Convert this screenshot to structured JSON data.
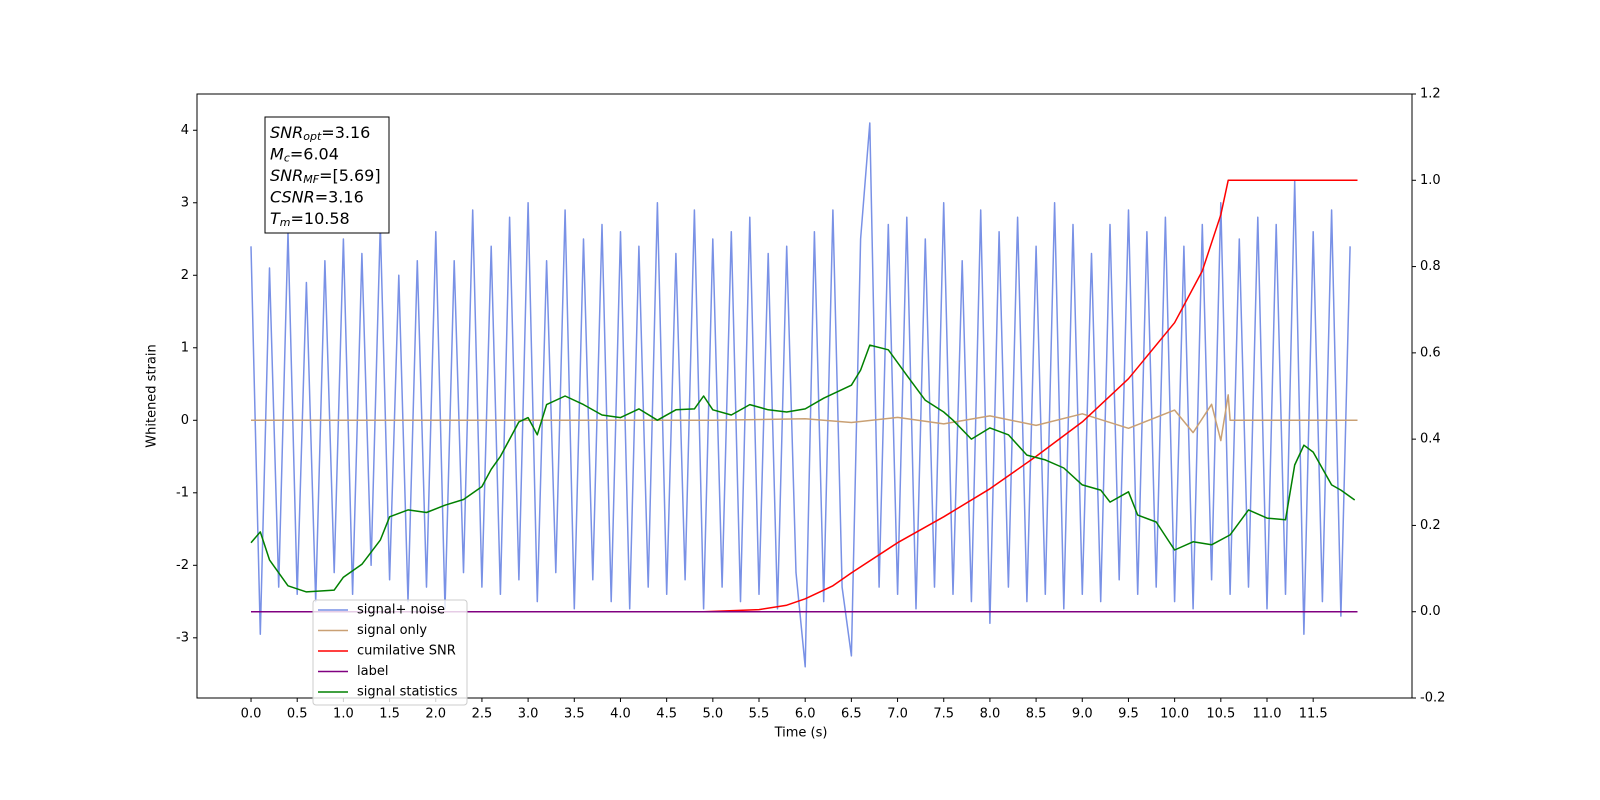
{
  "chart_data": {
    "type": "line",
    "xlabel": "Time (s)",
    "ylabel": "Whitened strain",
    "xlim": [
      -0.585,
      12.57
    ],
    "ylim": [
      -3.83,
      4.5
    ],
    "y2lim": [
      -0.2,
      1.2
    ],
    "xticks": [
      {
        "value": 0,
        "label": "0.0"
      },
      0.5,
      {
        "value": 1,
        "label": "1.0"
      },
      1.5,
      {
        "value": 2,
        "label": "2.0"
      },
      2.5,
      {
        "value": 3,
        "label": "3.0"
      },
      3.5,
      {
        "value": 4,
        "label": "4.0"
      },
      4.5,
      {
        "value": 5,
        "label": "5.0"
      },
      5.5,
      {
        "value": 6,
        "label": "6.0"
      },
      6.5,
      {
        "value": 7,
        "label": "7.0"
      },
      7.5,
      {
        "value": 8,
        "label": "8.0"
      },
      8.5,
      {
        "value": 9,
        "label": "9.0"
      },
      9.5,
      {
        "value": 10,
        "label": "10.0"
      },
      10.5,
      {
        "value": 11,
        "label": "11.0"
      },
      11.5
    ],
    "yticks": [
      -3,
      -2,
      -1,
      0,
      1,
      2,
      3,
      4
    ],
    "y2ticks": [
      -0.2,
      {
        "value": 0,
        "label": "0.0"
      },
      0.2,
      0.4,
      0.6,
      0.8,
      {
        "value": 1,
        "label": "1.0"
      },
      1.2
    ],
    "legend": "lower left",
    "annotations": [
      {
        "symbol": "SNR",
        "subscript": "opt",
        "text": "=3.16"
      },
      {
        "symbol": "M",
        "subscript": "c",
        "text": "=6.04"
      },
      {
        "symbol": "SNR",
        "subscript": "MF",
        "text": "=[5.69]"
      },
      {
        "symbol": "CSNR",
        "text": "=3.16"
      },
      {
        "symbol": "T",
        "subscript": "m",
        "text": "=10.58"
      }
    ],
    "series": [
      {
        "name": "signal+ noise",
        "color": "#7991e6",
        "x": [
          0.0,
          0.1,
          0.2,
          0.3,
          0.4,
          0.5,
          0.6,
          0.7,
          0.8,
          0.9,
          1.0,
          1.1,
          1.2,
          1.3,
          1.4,
          1.5,
          1.6,
          1.7,
          1.8,
          1.9,
          2.0,
          2.1,
          2.2,
          2.3,
          2.4,
          2.5,
          2.6,
          2.7,
          2.8,
          2.9,
          3.0,
          3.1,
          3.2,
          3.3,
          3.4,
          3.5,
          3.6,
          3.7,
          3.8,
          3.9,
          4.0,
          4.1,
          4.2,
          4.3,
          4.4,
          4.5,
          4.6,
          4.7,
          4.8,
          4.9,
          5.0,
          5.1,
          5.2,
          5.3,
          5.4,
          5.5,
          5.6,
          5.7,
          5.8,
          5.9,
          6.0,
          6.1,
          6.2,
          6.3,
          6.4,
          6.5,
          6.6,
          6.7,
          6.8,
          6.9,
          7.0,
          7.1,
          7.2,
          7.3,
          7.4,
          7.5,
          7.6,
          7.7,
          7.8,
          7.9,
          8.0,
          8.1,
          8.2,
          8.3,
          8.4,
          8.5,
          8.6,
          8.7,
          8.8,
          8.9,
          9.0,
          9.1,
          9.2,
          9.3,
          9.4,
          9.5,
          9.6,
          9.7,
          9.8,
          9.9,
          10.0,
          10.1,
          10.2,
          10.3,
          10.4,
          10.5,
          10.6,
          10.7,
          10.8,
          10.9,
          11.0,
          11.1,
          11.2,
          11.3,
          11.4,
          11.5,
          11.6,
          11.7,
          11.8,
          11.9
        ],
        "values": [
          2.4,
          -2.95,
          2.1,
          -2.3,
          2.6,
          -2.4,
          1.9,
          -2.5,
          2.2,
          -2.1,
          2.5,
          -2.4,
          2.3,
          -2.0,
          2.7,
          -2.2,
          2.0,
          -2.5,
          2.2,
          -2.3,
          2.6,
          -2.6,
          2.2,
          -2.1,
          2.9,
          -2.3,
          2.4,
          -2.4,
          2.8,
          -2.2,
          3.0,
          -2.5,
          2.2,
          -2.1,
          2.9,
          -2.6,
          2.5,
          -2.2,
          2.7,
          -2.5,
          2.6,
          -2.6,
          2.4,
          -2.3,
          3.0,
          -2.4,
          2.3,
          -2.2,
          2.9,
          -2.6,
          2.5,
          -2.3,
          2.6,
          -2.5,
          2.8,
          -2.4,
          2.3,
          -2.6,
          2.4,
          -2.1,
          -3.4,
          2.6,
          -2.5,
          2.9,
          -2.3,
          -3.25,
          2.5,
          4.1,
          -2.3,
          2.7,
          -2.4,
          2.8,
          -2.6,
          2.5,
          -2.3,
          3.0,
          -2.4,
          2.2,
          -2.5,
          2.9,
          -2.8,
          2.6,
          -2.3,
          2.8,
          -2.5,
          2.4,
          -2.4,
          3.0,
          -2.6,
          2.7,
          -2.4,
          2.3,
          -2.5,
          2.7,
          -2.2,
          2.9,
          -2.4,
          2.6,
          -2.3,
          2.8,
          -2.5,
          2.4,
          -2.6,
          2.7,
          -2.2,
          3.0,
          -2.4,
          2.5,
          -2.3,
          2.8,
          -2.6,
          2.7,
          -2.4,
          3.3,
          -2.95,
          2.6,
          -2.5,
          2.9,
          -2.7,
          2.4
        ]
      },
      {
        "name": "signal only",
        "color": "#c9a074",
        "x": [
          0.0,
          5.0,
          6.0,
          6.5,
          7.0,
          7.5,
          8.0,
          8.5,
          9.0,
          9.5,
          10.0,
          10.2,
          10.4,
          10.5,
          10.58,
          10.6,
          11.98
        ],
        "values": [
          0,
          0,
          0.02,
          -0.03,
          0.04,
          -0.05,
          0.06,
          -0.07,
          0.09,
          -0.11,
          0.14,
          -0.17,
          0.22,
          -0.28,
          0.35,
          0,
          0
        ]
      },
      {
        "name": "cumilative SNR",
        "color": "#ff0000",
        "axis": "y2",
        "x": [
          0.0,
          4.9,
          5.5,
          5.8,
          6.0,
          6.3,
          6.5,
          7.0,
          7.5,
          8.0,
          8.5,
          9.0,
          9.5,
          10.0,
          10.3,
          10.5,
          10.58,
          11.98
        ],
        "values": [
          0,
          0,
          0.005,
          0.015,
          0.03,
          0.06,
          0.09,
          0.16,
          0.22,
          0.285,
          0.36,
          0.44,
          0.54,
          0.67,
          0.79,
          0.92,
          1.0,
          1.0
        ]
      },
      {
        "name": "label",
        "color": "#800080",
        "axis": "y2",
        "x": [
          0.0,
          11.98
        ],
        "values": [
          0,
          0
        ]
      },
      {
        "name": "signal statistics",
        "color": "#008000",
        "axis": "y2",
        "x": [
          0.0,
          0.1,
          0.2,
          0.4,
          0.6,
          0.9,
          1.0,
          1.2,
          1.4,
          1.5,
          1.7,
          1.9,
          2.1,
          2.3,
          2.5,
          2.6,
          2.7,
          2.9,
          3.0,
          3.1,
          3.2,
          3.4,
          3.6,
          3.8,
          4.0,
          4.2,
          4.4,
          4.6,
          4.8,
          4.9,
          5.0,
          5.2,
          5.4,
          5.6,
          5.8,
          6.0,
          6.2,
          6.5,
          6.6,
          6.7,
          6.9,
          7.1,
          7.3,
          7.5,
          7.6,
          7.8,
          8.0,
          8.2,
          8.4,
          8.6,
          8.8,
          9.0,
          9.2,
          9.3,
          9.5,
          9.6,
          9.8,
          10.0,
          10.2,
          10.4,
          10.6,
          10.8,
          11.0,
          11.2,
          11.3,
          11.4,
          11.5,
          11.7,
          11.8,
          11.95
        ],
        "values": [
          0.16,
          0.185,
          0.12,
          0.06,
          0.046,
          0.05,
          0.08,
          0.11,
          0.166,
          0.22,
          0.236,
          0.23,
          0.247,
          0.26,
          0.29,
          0.33,
          0.36,
          0.44,
          0.45,
          0.41,
          0.48,
          0.5,
          0.48,
          0.456,
          0.45,
          0.47,
          0.444,
          0.468,
          0.47,
          0.5,
          0.468,
          0.456,
          0.48,
          0.468,
          0.463,
          0.47,
          0.495,
          0.525,
          0.56,
          0.618,
          0.607,
          0.548,
          0.49,
          0.463,
          0.444,
          0.4,
          0.426,
          0.41,
          0.363,
          0.352,
          0.333,
          0.294,
          0.282,
          0.254,
          0.278,
          0.224,
          0.208,
          0.143,
          0.162,
          0.155,
          0.178,
          0.236,
          0.217,
          0.213,
          0.34,
          0.386,
          0.37,
          0.294,
          0.282,
          0.259
        ]
      }
    ]
  }
}
